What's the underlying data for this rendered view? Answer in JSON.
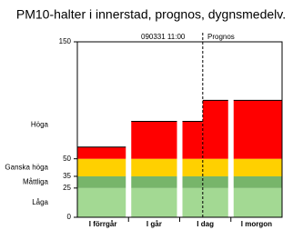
{
  "chart_data": {
    "type": "band-bar",
    "title": "PM10-halter i innerstad, prognos, dygnsmedelv.",
    "categories": [
      "I förrgår",
      "I går",
      "I dag",
      "I morgon"
    ],
    "values": [
      60,
      82,
      100,
      100
    ],
    "observed_today": 82,
    "annotations": [
      "090331 11:00",
      "Prognos"
    ],
    "ylim": [
      0,
      150
    ],
    "yticks": [
      0,
      25,
      35,
      50,
      150
    ],
    "bands": [
      {
        "name": "Låga",
        "to": 25,
        "color": "#a3d993"
      },
      {
        "name": "Måttliga",
        "to": 35,
        "color": "#77b56a"
      },
      {
        "name": "Ganska höga",
        "to": 50,
        "color": "#ffd000"
      },
      {
        "name": "Höga",
        "to": 150,
        "color": "#ff0000"
      }
    ]
  }
}
